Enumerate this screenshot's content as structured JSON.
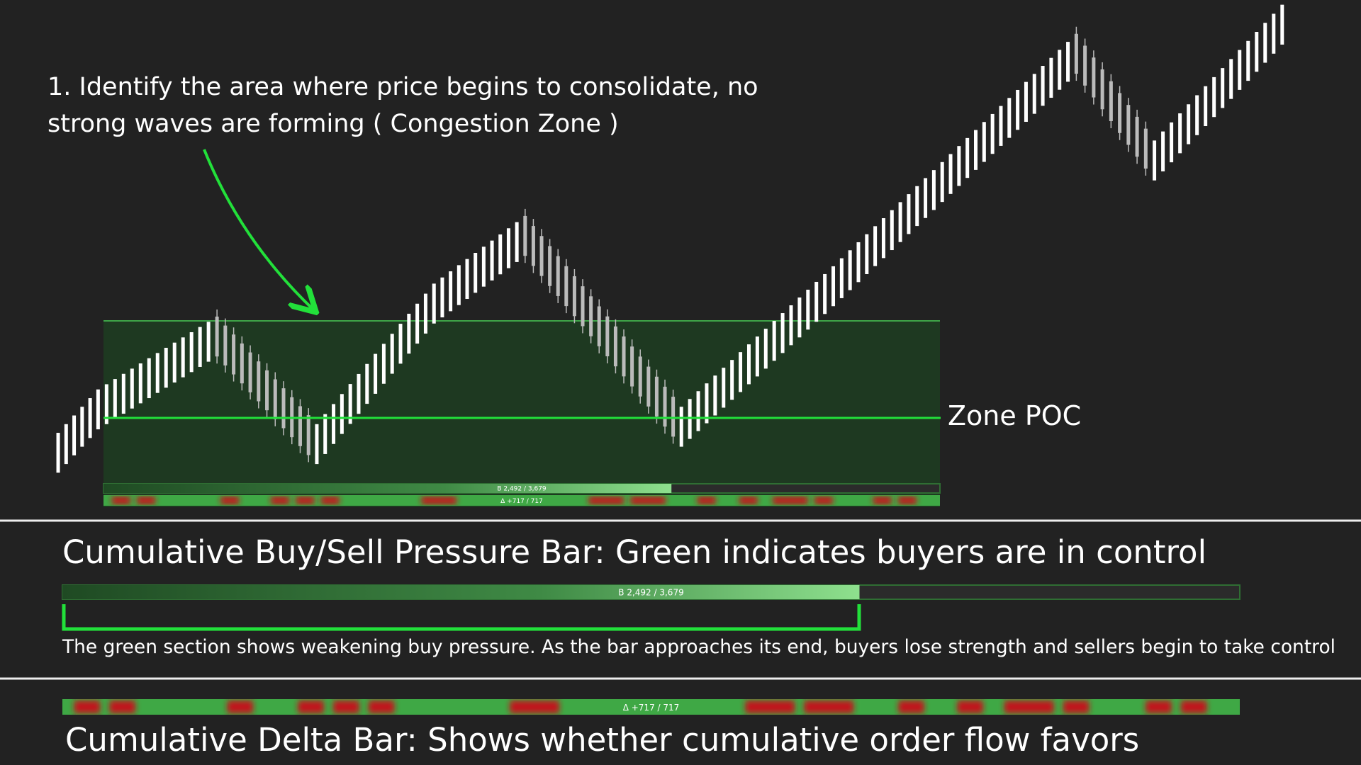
{
  "annotation": {
    "lines": [
      "1. Identify the area where price begins to consolidate, no",
      "strong waves are forming ( Congestion Zone )"
    ]
  },
  "zone": {
    "poc_label": "Zone POC",
    "pressure_label": "B 2,492 / 3,679",
    "delta_label": "Δ +717 / 717"
  },
  "pressure_section": {
    "title": "Cumulative Buy/Sell Pressure Bar: Green indicates buyers are in control",
    "bar_label": "B 2,492 / 3,679",
    "description": "The green section shows weakening buy pressure. As the bar approaches its end, buyers lose strength and sellers begin to take control"
  },
  "delta_section": {
    "bar_label": "Δ +717 / 717",
    "title": "Cumulative Delta Bar: Shows whether cumulative order flow favors"
  }
}
